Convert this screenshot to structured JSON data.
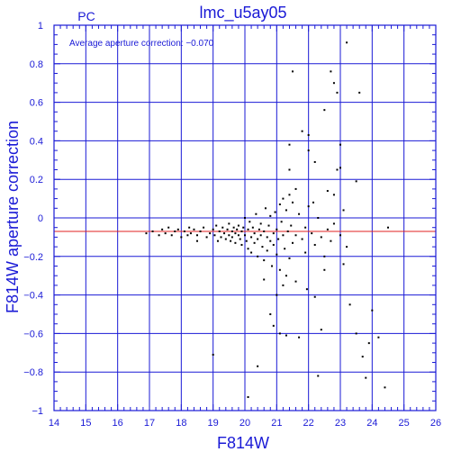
{
  "chart_data": {
    "type": "scatter",
    "title": "lmc_u5ay05",
    "corner_label": "PC",
    "xlabel": "F814W",
    "ylabel": "F814W aperture correction",
    "annotation": "Average aperture correction: −0.070",
    "xlim": [
      14,
      26
    ],
    "ylim": [
      -1,
      1
    ],
    "x_ticks": [
      14,
      15,
      16,
      17,
      18,
      19,
      20,
      21,
      22,
      23,
      24,
      25,
      26
    ],
    "y_ticks": [
      -1,
      -0.8,
      -0.6,
      -0.4,
      -0.2,
      0,
      0.2,
      0.4,
      0.6,
      0.8,
      1
    ],
    "x_tick_labels": [
      "14",
      "15",
      "16",
      "17",
      "18",
      "19",
      "20",
      "21",
      "22",
      "23",
      "24",
      "25",
      "26"
    ],
    "y_tick_labels": [
      "−1",
      "−0.8",
      "−0.6",
      "−0.4",
      "−0.2",
      "0",
      "0.2",
      "0.4",
      "0.6",
      "0.8",
      "1"
    ],
    "grid": true,
    "reference_line_y": -0.07,
    "colors": {
      "axes": "#1a1ad6",
      "grid": "#1a1ad6",
      "text": "#1a1ad6",
      "points": "#000000",
      "reference_line": "#e02020"
    },
    "points": [
      [
        16.9,
        -0.08
      ],
      [
        17.1,
        -0.07
      ],
      [
        17.3,
        -0.09
      ],
      [
        17.4,
        -0.06
      ],
      [
        17.5,
        -0.08
      ],
      [
        17.6,
        -0.05
      ],
      [
        17.7,
        -0.09
      ],
      [
        17.8,
        -0.07
      ],
      [
        17.9,
        -0.06
      ],
      [
        18.0,
        -0.1
      ],
      [
        18.1,
        -0.07
      ],
      [
        18.2,
        -0.09
      ],
      [
        18.25,
        -0.05
      ],
      [
        18.3,
        -0.08
      ],
      [
        18.4,
        -0.06
      ],
      [
        18.5,
        -0.09
      ],
      [
        18.5,
        -0.12
      ],
      [
        18.6,
        -0.07
      ],
      [
        18.7,
        -0.05
      ],
      [
        18.8,
        -0.1
      ],
      [
        18.9,
        -0.08
      ],
      [
        19.0,
        -0.06
      ],
      [
        19.05,
        -0.09
      ],
      [
        19.1,
        -0.04
      ],
      [
        19.15,
        -0.12
      ],
      [
        19.2,
        -0.07
      ],
      [
        19.25,
        -0.1
      ],
      [
        19.3,
        -0.05
      ],
      [
        19.35,
        -0.08
      ],
      [
        19.4,
        -0.11
      ],
      [
        19.45,
        -0.06
      ],
      [
        19.5,
        -0.09
      ],
      [
        19.5,
        -0.03
      ],
      [
        19.55,
        -0.12
      ],
      [
        19.6,
        -0.07
      ],
      [
        19.6,
        -0.1
      ],
      [
        19.65,
        -0.05
      ],
      [
        19.7,
        -0.08
      ],
      [
        19.7,
        -0.13
      ],
      [
        19.75,
        -0.06
      ],
      [
        19.8,
        -0.09
      ],
      [
        19.8,
        -0.04
      ],
      [
        19.85,
        -0.11
      ],
      [
        19.9,
        -0.07
      ],
      [
        19.9,
        -0.14
      ],
      [
        19.95,
        -0.05
      ],
      [
        20.0,
        -0.09
      ],
      [
        20.0,
        0.0
      ],
      [
        20.05,
        -0.12
      ],
      [
        20.1,
        -0.06
      ],
      [
        20.1,
        -0.16
      ],
      [
        20.15,
        -0.02
      ],
      [
        20.2,
        -0.1
      ],
      [
        20.2,
        -0.18
      ],
      [
        20.25,
        -0.05
      ],
      [
        20.3,
        -0.08
      ],
      [
        20.3,
        -0.13
      ],
      [
        20.35,
        0.02
      ],
      [
        20.4,
        -0.11
      ],
      [
        20.4,
        -0.2
      ],
      [
        20.45,
        -0.06
      ],
      [
        20.5,
        -0.09
      ],
      [
        20.5,
        -0.03
      ],
      [
        20.55,
        -0.15
      ],
      [
        20.6,
        -0.07
      ],
      [
        20.6,
        -0.22
      ],
      [
        20.65,
        0.05
      ],
      [
        20.7,
        -0.1
      ],
      [
        20.7,
        -0.17
      ],
      [
        20.75,
        -0.04
      ],
      [
        20.8,
        -0.12
      ],
      [
        20.8,
        0.01
      ],
      [
        20.85,
        -0.25
      ],
      [
        20.9,
        -0.08
      ],
      [
        20.9,
        -0.14
      ],
      [
        20.95,
        0.03
      ],
      [
        21.0,
        -0.06
      ],
      [
        21.0,
        -0.19
      ],
      [
        21.05,
        -0.11
      ],
      [
        21.1,
        0.07
      ],
      [
        21.1,
        -0.27
      ],
      [
        21.15,
        -0.02
      ],
      [
        21.2,
        -0.09
      ],
      [
        21.2,
        0.1
      ],
      [
        21.25,
        -0.16
      ],
      [
        21.3,
        0.04
      ],
      [
        21.3,
        -0.3
      ],
      [
        21.35,
        -0.07
      ],
      [
        21.4,
        0.12
      ],
      [
        21.4,
        -0.21
      ],
      [
        21.45,
        -0.04
      ],
      [
        21.5,
        -0.13
      ],
      [
        21.5,
        0.08
      ],
      [
        21.6,
        -0.09
      ],
      [
        21.6,
        -0.33
      ],
      [
        21.7,
        0.02
      ],
      [
        21.8,
        -0.11
      ],
      [
        21.9,
        -0.05
      ],
      [
        21.9,
        -0.18
      ],
      [
        22.0,
        0.06
      ],
      [
        22.1,
        -0.08
      ],
      [
        22.2,
        -0.14
      ],
      [
        22.3,
        0.0
      ],
      [
        22.4,
        -0.1
      ],
      [
        22.5,
        -0.2
      ],
      [
        22.6,
        -0.06
      ],
      [
        22.7,
        -0.12
      ],
      [
        22.8,
        -0.03
      ],
      [
        23.0,
        -0.09
      ],
      [
        23.2,
        -0.15
      ],
      [
        19.0,
        -0.71
      ],
      [
        20.1,
        -0.93
      ],
      [
        20.4,
        -0.77
      ],
      [
        20.6,
        -0.32
      ],
      [
        20.8,
        -0.5
      ],
      [
        20.9,
        -0.56
      ],
      [
        21.0,
        -0.4
      ],
      [
        21.1,
        -0.6
      ],
      [
        21.2,
        -0.35
      ],
      [
        21.3,
        -0.61
      ],
      [
        21.4,
        0.38
      ],
      [
        21.4,
        0.25
      ],
      [
        21.5,
        0.76
      ],
      [
        21.6,
        0.15
      ],
      [
        21.7,
        -0.62
      ],
      [
        21.8,
        0.45
      ],
      [
        22.0,
        0.43
      ],
      [
        22.2,
        0.29
      ],
      [
        22.2,
        -0.41
      ],
      [
        22.3,
        -0.82
      ],
      [
        22.4,
        -0.58
      ],
      [
        22.5,
        0.56
      ],
      [
        22.5,
        -0.27
      ],
      [
        22.6,
        0.14
      ],
      [
        22.7,
        0.76
      ],
      [
        22.8,
        0.12
      ],
      [
        22.8,
        0.7
      ],
      [
        22.9,
        0.65
      ],
      [
        22.9,
        0.25
      ],
      [
        23.0,
        0.38
      ],
      [
        23.0,
        0.26
      ],
      [
        23.1,
        -0.24
      ],
      [
        23.2,
        0.91
      ],
      [
        23.3,
        -0.45
      ],
      [
        23.5,
        -0.6
      ],
      [
        23.5,
        0.19
      ],
      [
        23.6,
        0.65
      ],
      [
        23.7,
        -0.72
      ],
      [
        23.8,
        -0.83
      ],
      [
        23.9,
        -0.65
      ],
      [
        24.0,
        -0.48
      ],
      [
        24.2,
        -0.62
      ],
      [
        24.4,
        -0.88
      ],
      [
        24.5,
        -0.05
      ],
      [
        22.0,
        0.35
      ],
      [
        21.95,
        -0.37
      ],
      [
        22.15,
        0.08
      ],
      [
        23.1,
        0.04
      ]
    ]
  }
}
